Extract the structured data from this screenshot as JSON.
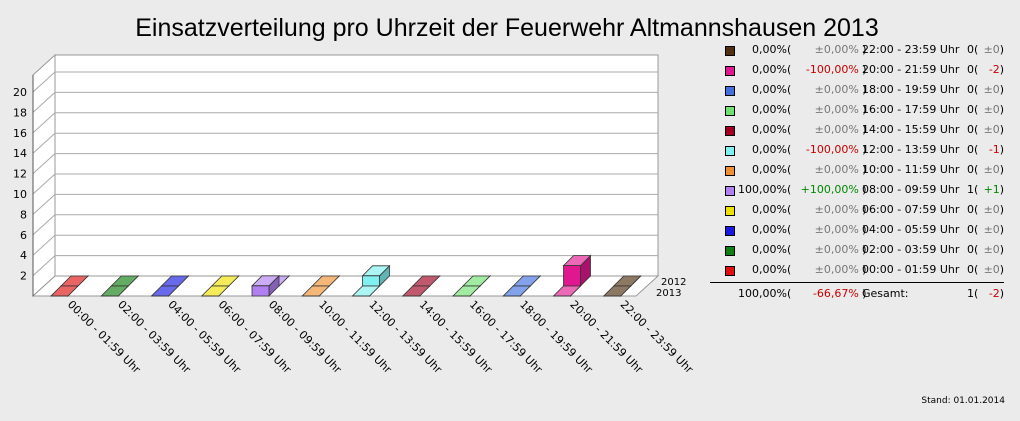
{
  "title": "Einsatzverteilung pro Uhrzeit der Feuerwehr Altmannshausen 2013",
  "stand": "Stand: 01.01.2014",
  "chart_data": {
    "type": "bar",
    "categories": [
      "00:00 - 01:59 Uhr",
      "02:00 - 03:59 Uhr",
      "04:00 - 05:59 Uhr",
      "06:00 - 07:59 Uhr",
      "08:00 - 09:59 Uhr",
      "10:00 - 11:59 Uhr",
      "12:00 - 13:59 Uhr",
      "14:00 - 15:59 Uhr",
      "16:00 - 17:59 Uhr",
      "18:00 - 19:59 Uhr",
      "20:00 - 21:59 Uhr",
      "22:00 - 23:59 Uhr"
    ],
    "series": [
      {
        "name": "2013",
        "values": [
          0,
          0,
          0,
          0,
          1,
          0,
          0,
          0,
          0,
          0,
          0,
          0
        ]
      },
      {
        "name": "2012",
        "values": [
          0,
          0,
          0,
          0,
          0,
          0,
          1,
          0,
          0,
          0,
          2,
          0
        ]
      }
    ],
    "colors": [
      "#e01010",
      "#108010",
      "#1818e0",
      "#f0e000",
      "#b080f0",
      "#f09030",
      "#80f0f0",
      "#a00020",
      "#70e070",
      "#4070e0",
      "#e01890",
      "#503010"
    ],
    "ylim": [
      0,
      21
    ],
    "yticks": [
      "2",
      "4",
      "6",
      "8",
      "10",
      "12",
      "14",
      "16",
      "18",
      "20"
    ],
    "grid": true,
    "legend_position": "right"
  },
  "legend": {
    "rows": [
      {
        "pct": "0,00%",
        "chg": "±0,00%",
        "chg_class": "neu",
        "time": "22:00 - 23:59 Uhr",
        "count": "0",
        "diff": "±0",
        "diff_class": "neu",
        "color": "#503010"
      },
      {
        "pct": "0,00%",
        "chg": "-100,00%",
        "chg_class": "neg",
        "time": "20:00 - 21:59 Uhr",
        "count": "0",
        "diff": "-2",
        "diff_class": "neg",
        "color": "#e01890"
      },
      {
        "pct": "0,00%",
        "chg": "±0,00%",
        "chg_class": "neu",
        "time": "18:00 - 19:59 Uhr",
        "count": "0",
        "diff": "±0",
        "diff_class": "neu",
        "color": "#4070e0"
      },
      {
        "pct": "0,00%",
        "chg": "±0,00%",
        "chg_class": "neu",
        "time": "16:00 - 17:59 Uhr",
        "count": "0",
        "diff": "±0",
        "diff_class": "neu",
        "color": "#70e070"
      },
      {
        "pct": "0,00%",
        "chg": "±0,00%",
        "chg_class": "neu",
        "time": "14:00 - 15:59 Uhr",
        "count": "0",
        "diff": "±0",
        "diff_class": "neu",
        "color": "#a00020"
      },
      {
        "pct": "0,00%",
        "chg": "-100,00%",
        "chg_class": "neg",
        "time": "12:00 - 13:59 Uhr",
        "count": "0",
        "diff": "-1",
        "diff_class": "neg",
        "color": "#80f0f0"
      },
      {
        "pct": "0,00%",
        "chg": "±0,00%",
        "chg_class": "neu",
        "time": "10:00 - 11:59 Uhr",
        "count": "0",
        "diff": "±0",
        "diff_class": "neu",
        "color": "#f09030"
      },
      {
        "pct": "100,00%",
        "chg": "+100,00%",
        "chg_class": "pos",
        "time": "08:00 - 09:59 Uhr",
        "count": "1",
        "diff": "+1",
        "diff_class": "pos",
        "color": "#b080f0"
      },
      {
        "pct": "0,00%",
        "chg": "±0,00%",
        "chg_class": "neu",
        "time": "06:00 - 07:59 Uhr",
        "count": "0",
        "diff": "±0",
        "diff_class": "neu",
        "color": "#f0e000"
      },
      {
        "pct": "0,00%",
        "chg": "±0,00%",
        "chg_class": "neu",
        "time": "04:00 - 05:59 Uhr",
        "count": "0",
        "diff": "±0",
        "diff_class": "neu",
        "color": "#1818e0"
      },
      {
        "pct": "0,00%",
        "chg": "±0,00%",
        "chg_class": "neu",
        "time": "02:00 - 03:59 Uhr",
        "count": "0",
        "diff": "±0",
        "diff_class": "neu",
        "color": "#108010"
      },
      {
        "pct": "0,00%",
        "chg": "±0,00%",
        "chg_class": "neu",
        "time": "00:00 - 01:59 Uhr",
        "count": "0",
        "diff": "±0",
        "diff_class": "neu",
        "color": "#e01010"
      }
    ],
    "total": {
      "pct": "100,00%",
      "chg": "-66,67%",
      "chg_class": "neg",
      "label": "Gesamt:",
      "count": "1",
      "diff": "-2",
      "diff_class": "neg"
    }
  }
}
